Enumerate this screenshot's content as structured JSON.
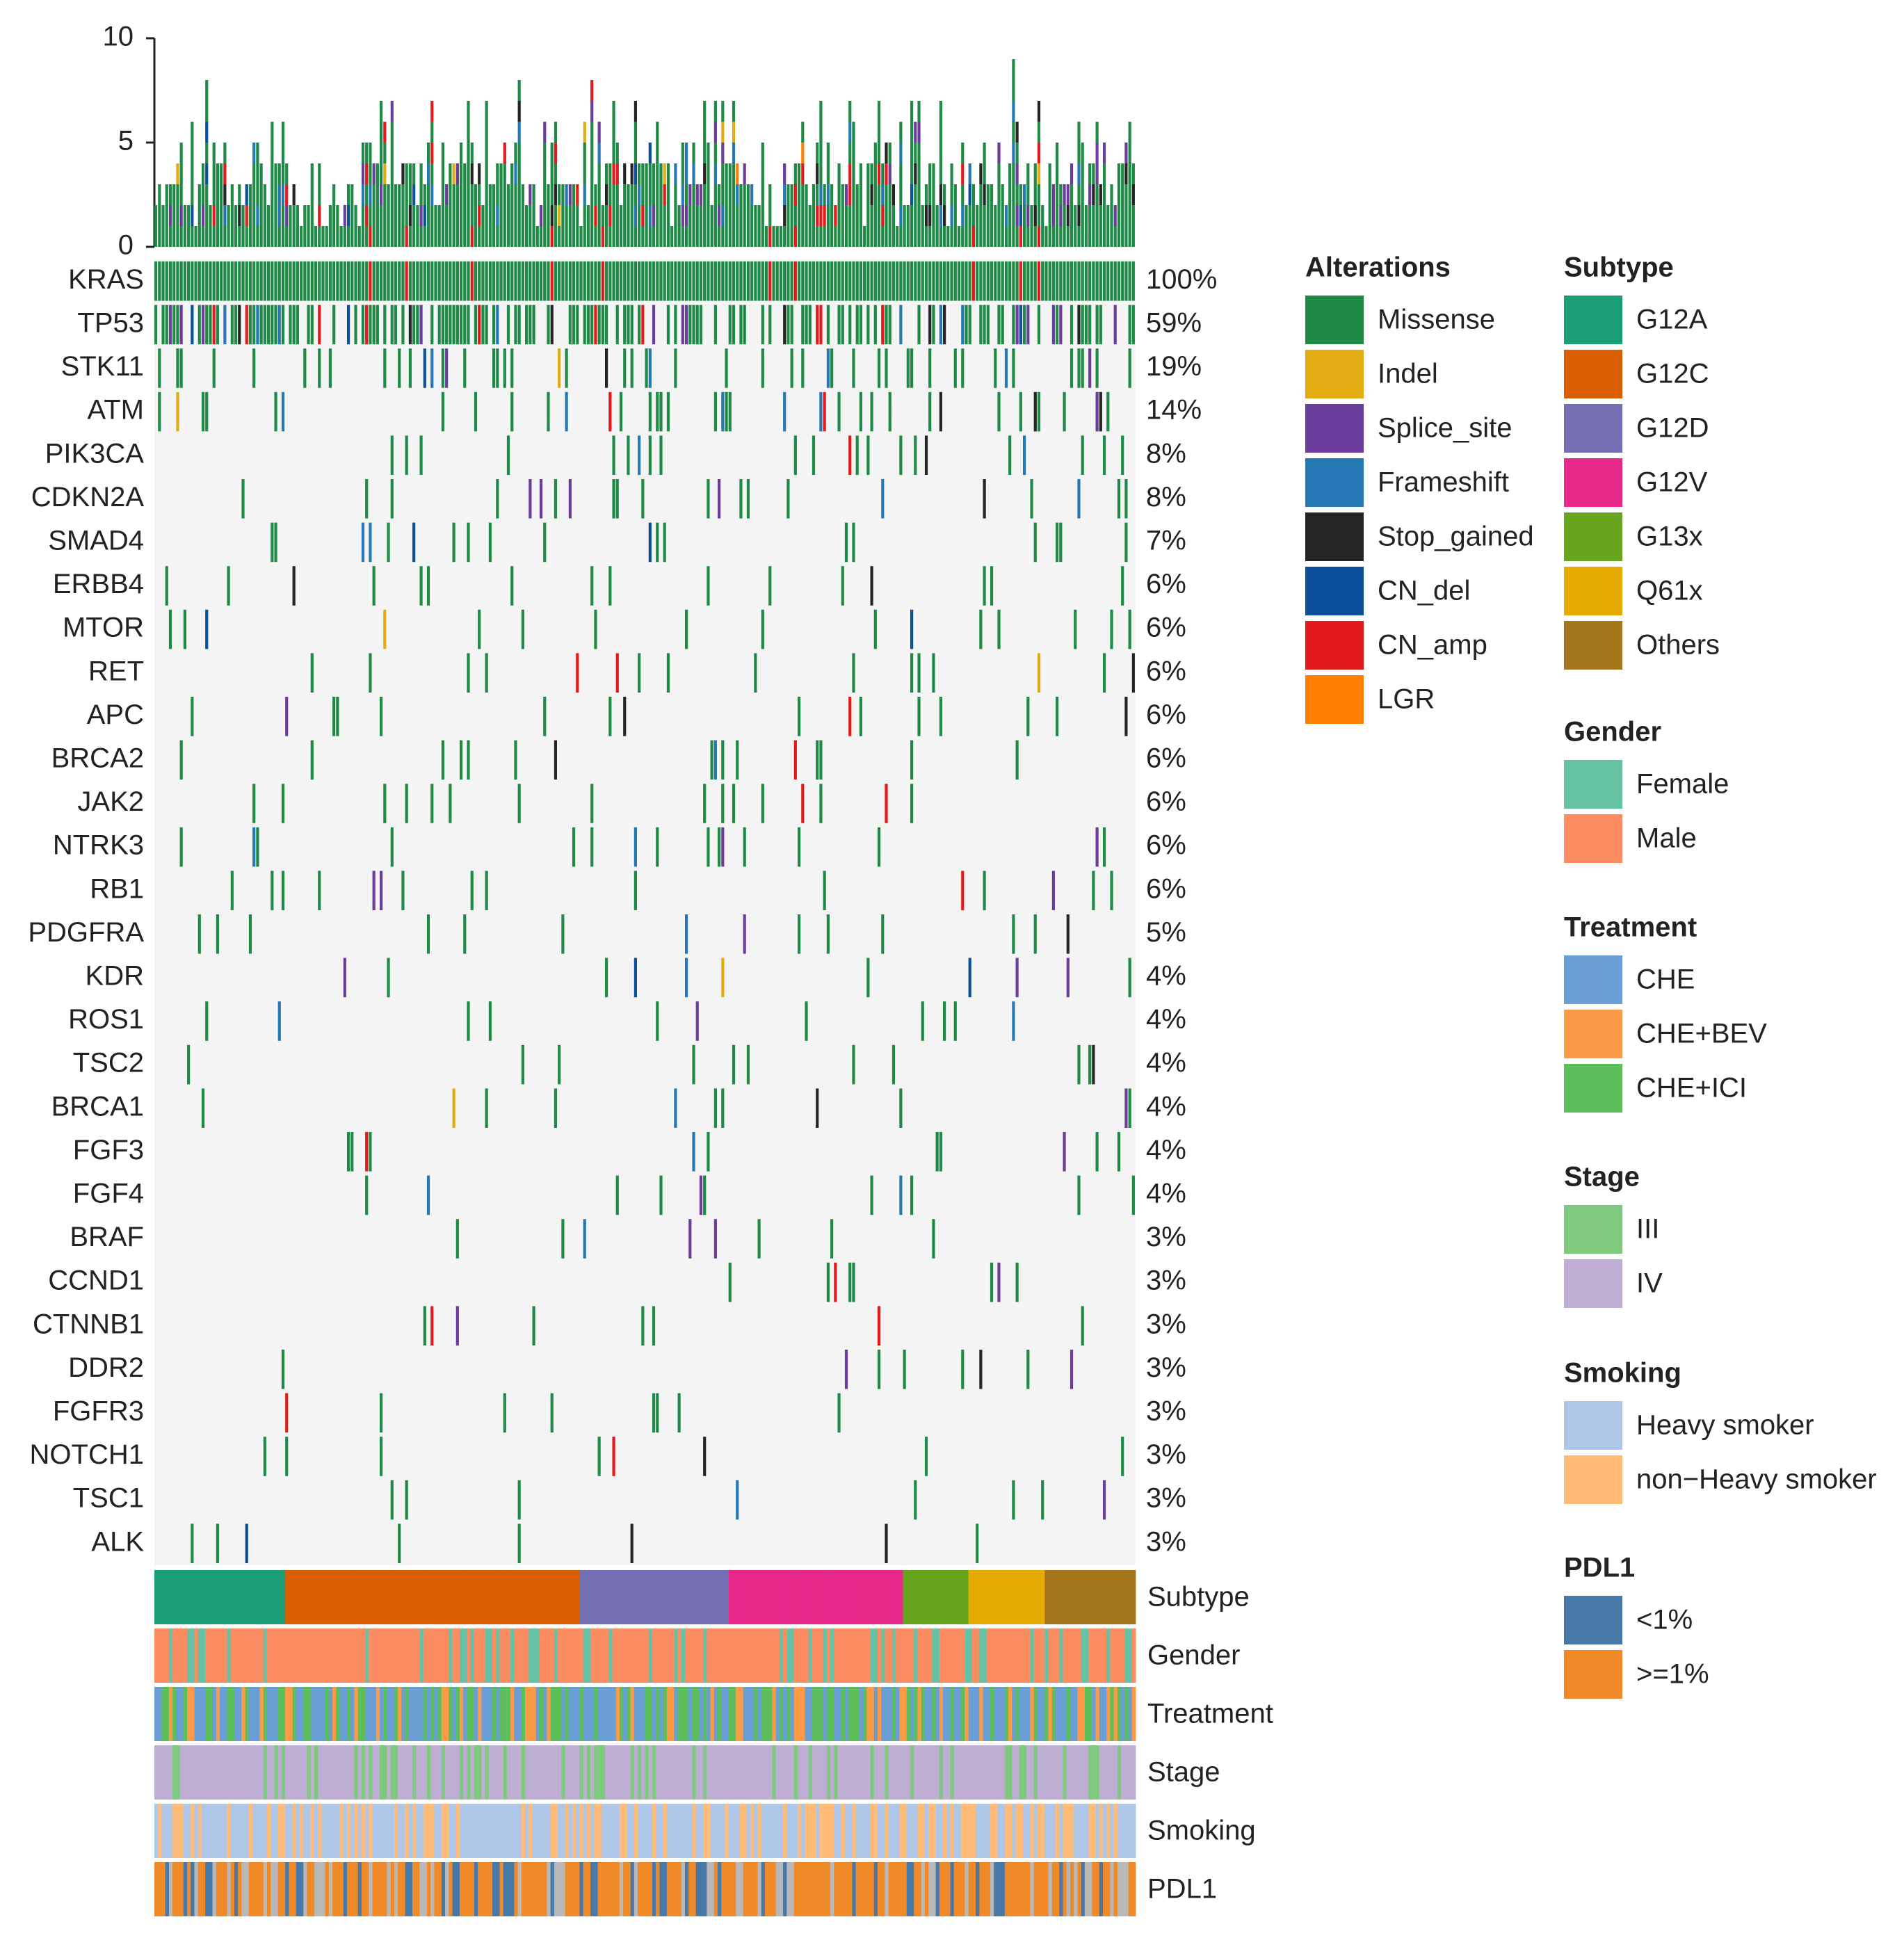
{
  "chart_data": {
    "type": "heatmap",
    "title": "",
    "n_samples": 270,
    "tmb_axis": {
      "ylim": [
        0,
        10
      ],
      "ticks": [
        "0",
        "5",
        "10"
      ]
    },
    "genes": [
      {
        "name": "KRAS",
        "pct": "100%",
        "mutated": 270
      },
      {
        "name": "TP53",
        "pct": "59%",
        "mutated": 159
      },
      {
        "name": "STK11",
        "pct": "19%",
        "mutated": 51
      },
      {
        "name": "ATM",
        "pct": "14%",
        "mutated": 38
      },
      {
        "name": "PIK3CA",
        "pct": "8%",
        "mutated": 22
      },
      {
        "name": "CDKN2A",
        "pct": "8%",
        "mutated": 22
      },
      {
        "name": "SMAD4",
        "pct": "7%",
        "mutated": 19
      },
      {
        "name": "ERBB4",
        "pct": "6%",
        "mutated": 16
      },
      {
        "name": "MTOR",
        "pct": "6%",
        "mutated": 16
      },
      {
        "name": "RET",
        "pct": "6%",
        "mutated": 16
      },
      {
        "name": "APC",
        "pct": "6%",
        "mutated": 16
      },
      {
        "name": "BRCA2",
        "pct": "6%",
        "mutated": 16
      },
      {
        "name": "JAK2",
        "pct": "6%",
        "mutated": 16
      },
      {
        "name": "NTRK3",
        "pct": "6%",
        "mutated": 16
      },
      {
        "name": "RB1",
        "pct": "6%",
        "mutated": 16
      },
      {
        "name": "PDGFRA",
        "pct": "5%",
        "mutated": 14
      },
      {
        "name": "KDR",
        "pct": "4%",
        "mutated": 11
      },
      {
        "name": "ROS1",
        "pct": "4%",
        "mutated": 11
      },
      {
        "name": "TSC2",
        "pct": "4%",
        "mutated": 11
      },
      {
        "name": "BRCA1",
        "pct": "4%",
        "mutated": 11
      },
      {
        "name": "FGF3",
        "pct": "4%",
        "mutated": 11
      },
      {
        "name": "FGF4",
        "pct": "4%",
        "mutated": 11
      },
      {
        "name": "BRAF",
        "pct": "3%",
        "mutated": 8
      },
      {
        "name": "CCND1",
        "pct": "3%",
        "mutated": 8
      },
      {
        "name": "CTNNB1",
        "pct": "3%",
        "mutated": 8
      },
      {
        "name": "DDR2",
        "pct": "3%",
        "mutated": 8
      },
      {
        "name": "FGFR3",
        "pct": "3%",
        "mutated": 8
      },
      {
        "name": "NOTCH1",
        "pct": "3%",
        "mutated": 8
      },
      {
        "name": "TSC1",
        "pct": "3%",
        "mutated": 8
      },
      {
        "name": "ALK",
        "pct": "3%",
        "mutated": 8
      }
    ],
    "alterations": [
      {
        "name": "Missense",
        "color": "#1e8a45"
      },
      {
        "name": "Indel",
        "color": "#e0ac12"
      },
      {
        "name": "Splice_site",
        "color": "#6a3d9a"
      },
      {
        "name": "Frameshift",
        "color": "#2678b5"
      },
      {
        "name": "Stop_gained",
        "color": "#252525"
      },
      {
        "name": "CN_del",
        "color": "#0b4f9a"
      },
      {
        "name": "CN_amp",
        "color": "#e31a1c"
      },
      {
        "name": "LGR",
        "color": "#ff7f00"
      }
    ],
    "annotations": [
      {
        "name": "Subtype",
        "segments": [
          {
            "label": "G12A",
            "n": 36,
            "color": "#1b9e77"
          },
          {
            "label": "G12C",
            "n": 81,
            "color": "#d95f02"
          },
          {
            "label": "G12D",
            "n": 41,
            "color": "#7570b3"
          },
          {
            "label": "G12V",
            "n": 48,
            "color": "#e7298a"
          },
          {
            "label": "G13x",
            "n": 18,
            "color": "#66a61e"
          },
          {
            "label": "Q61x",
            "n": 21,
            "color": "#e6ab02"
          },
          {
            "label": "Others",
            "n": 25,
            "color": "#a6761d"
          }
        ]
      },
      {
        "name": "Gender",
        "legend": [
          {
            "label": "Female",
            "color": "#66c2a5"
          },
          {
            "label": "Male",
            "color": "#fc8d62"
          }
        ]
      },
      {
        "name": "Treatment",
        "legend": [
          {
            "label": "CHE",
            "color": "#6a9fd6"
          },
          {
            "label": "CHE+BEV",
            "color": "#fb9a47"
          },
          {
            "label": "CHE+ICI",
            "color": "#5cbf5c"
          }
        ]
      },
      {
        "name": "Stage",
        "legend": [
          {
            "label": "III",
            "color": "#7fc97f"
          },
          {
            "label": "IV",
            "color": "#beaed4"
          }
        ]
      },
      {
        "name": "Smoking",
        "legend": [
          {
            "label": "Heavy smoker",
            "color": "#aec7e8"
          },
          {
            "label": "non−Heavy smoker",
            "color": "#ffbb78"
          }
        ]
      },
      {
        "name": "PDL1",
        "legend": [
          {
            "label": "<1%",
            "color": "#4878a8"
          },
          {
            "label": ">=1%",
            "color": "#f08a28"
          }
        ]
      }
    ],
    "legend_titles": {
      "alterations": "Alterations",
      "subtype": "Subtype",
      "gender": "Gender",
      "treatment": "Treatment",
      "stage": "Stage",
      "smoking": "Smoking",
      "pdl1": "PDL1"
    }
  },
  "colors": {
    "background": "#f4f4f4",
    "missing": "#b8b8b8"
  }
}
